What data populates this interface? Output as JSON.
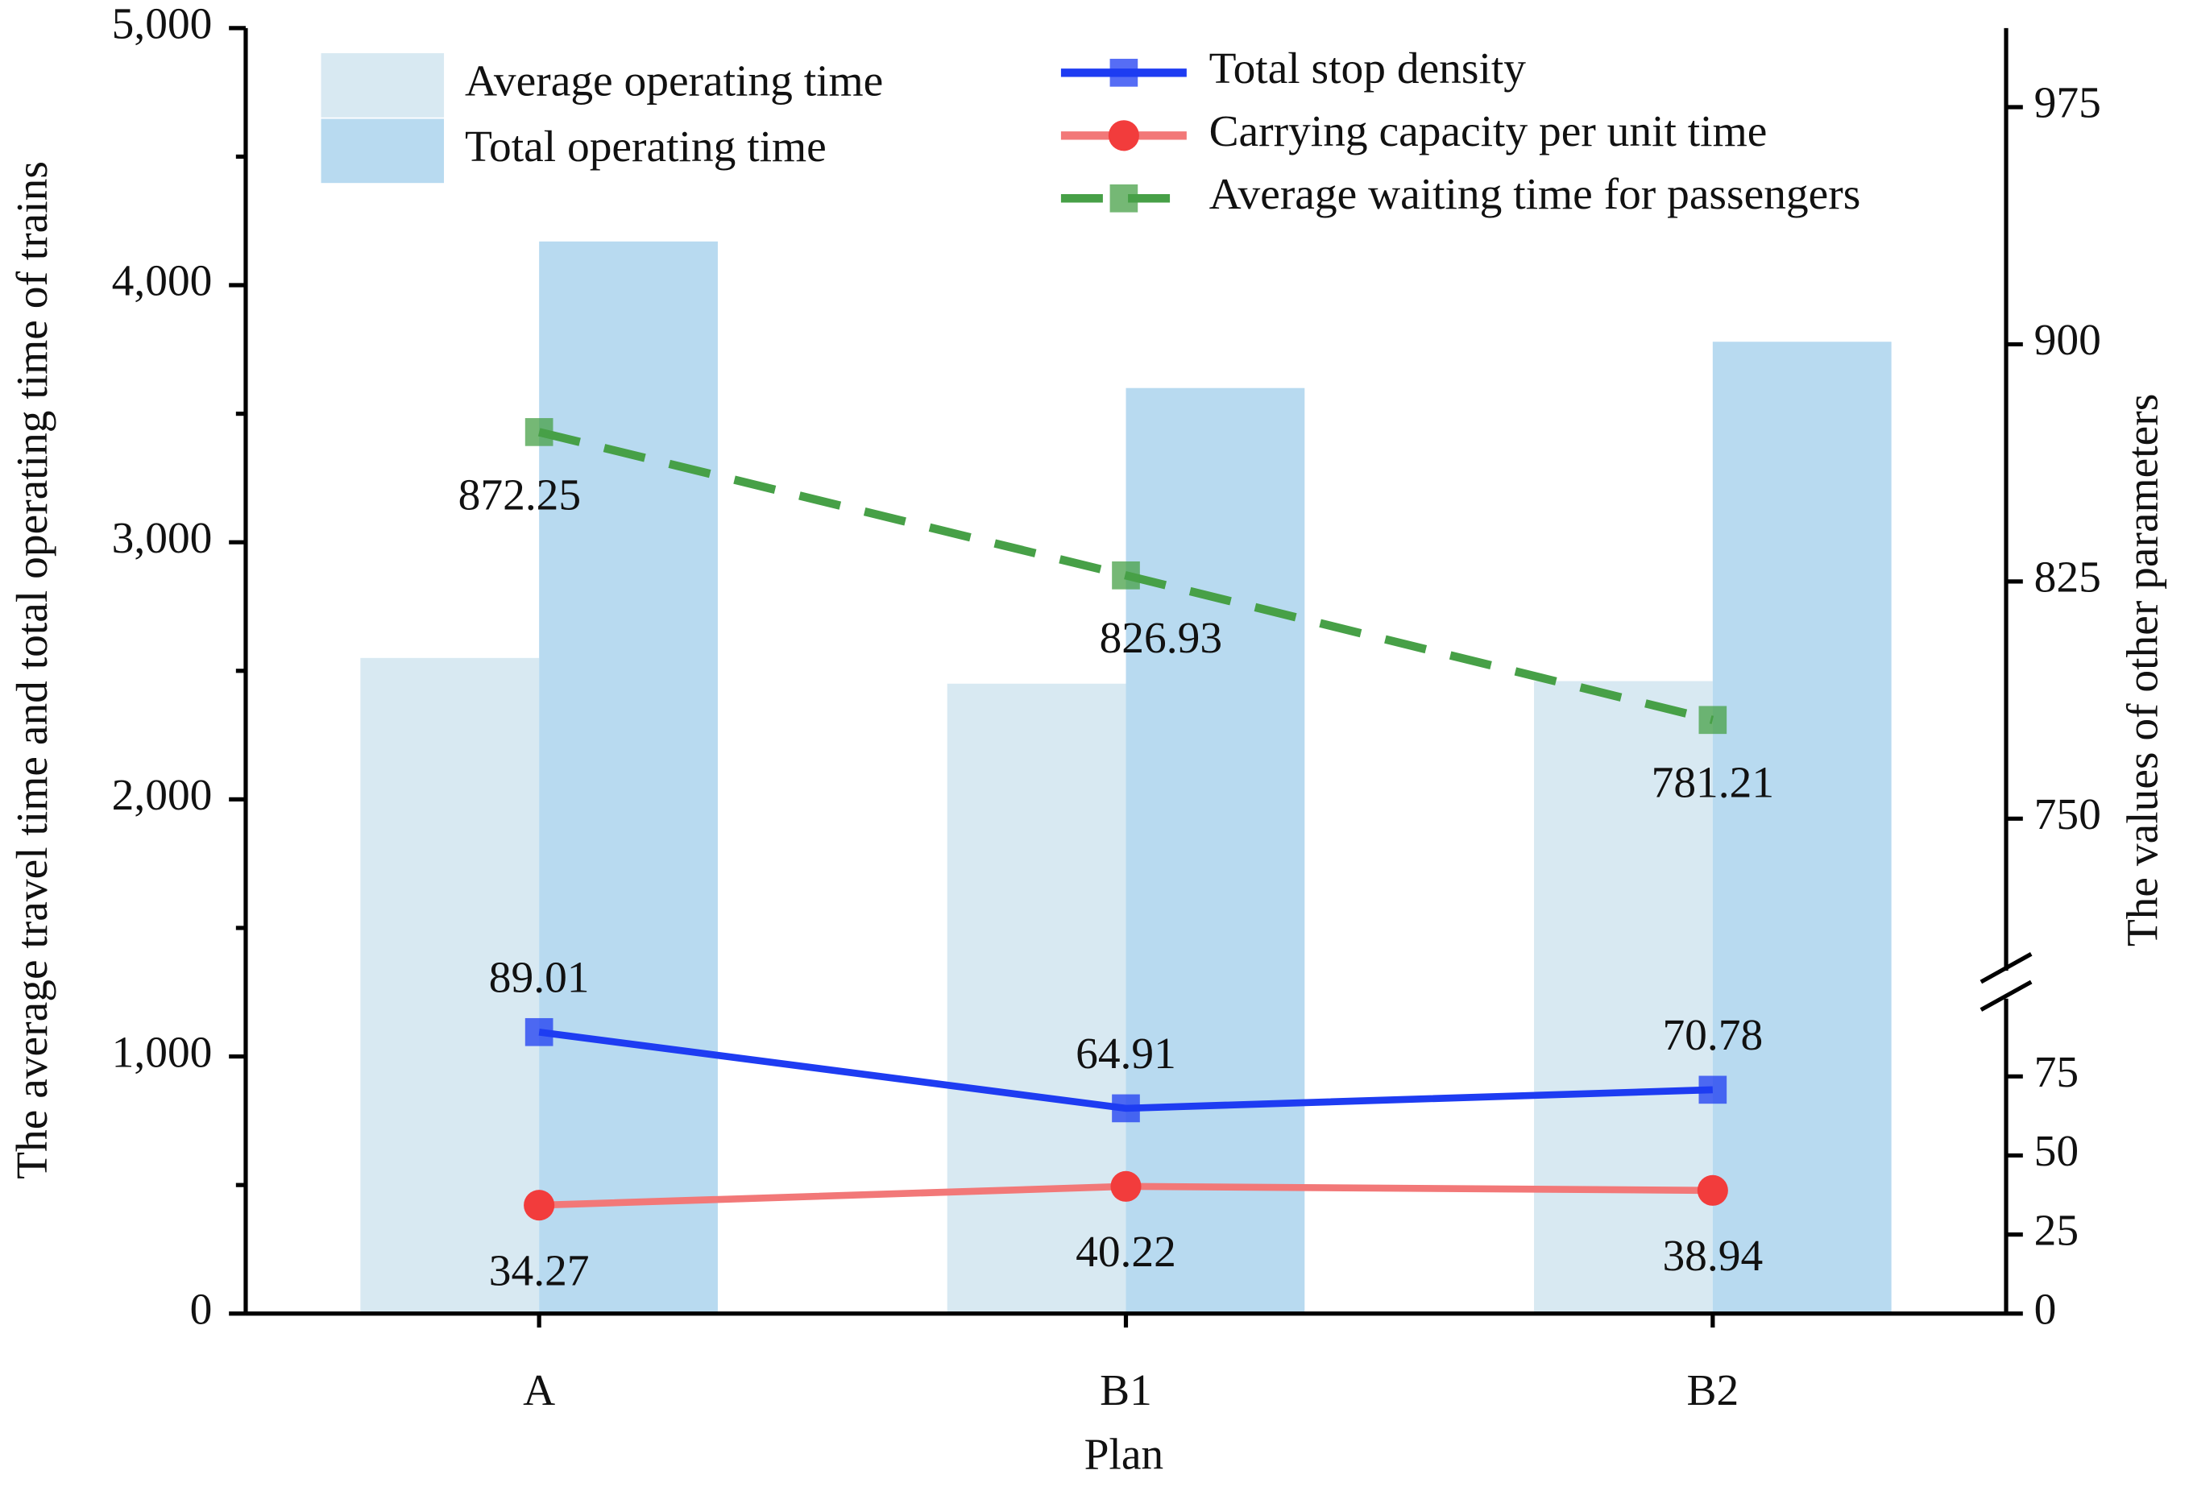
{
  "chart_data": {
    "type": "bar",
    "x_label": "Plan",
    "y_label": "The average travel time and total operating time of trains",
    "y2_label": "The values of other parameters",
    "categories": [
      "A",
      "B1",
      "B2"
    ],
    "ylim": [
      0,
      5000
    ],
    "yticks": [
      0,
      {
        "value": 1000,
        "label": "1,000"
      },
      {
        "value": 2000,
        "label": "2,000"
      },
      {
        "value": 3000,
        "label": "3,000"
      },
      {
        "value": 4000,
        "label": "4,000"
      },
      {
        "value": 5000,
        "label": "5,000"
      }
    ],
    "y2lim": [
      0,
      1000
    ],
    "y2break": [
      104,
      697.5
    ],
    "y2ticks": [
      0,
      25,
      50,
      75,
      750,
      825,
      900,
      975
    ],
    "series": [
      {
        "name": "Average operating time",
        "type": "bar",
        "color": "#d8e9f2",
        "values": [
          2550,
          2450,
          2460
        ]
      },
      {
        "name": "Total operating time",
        "type": "bar",
        "color": "#b8daf0",
        "values": [
          4170,
          3600,
          3780
        ]
      },
      {
        "name": "Total stop density",
        "type": "line",
        "axis": "y2",
        "color": "#1e3cf2",
        "marker": "square",
        "dashed": false,
        "label_side": "above",
        "values": [
          89.01,
          64.91,
          70.78
        ]
      },
      {
        "name": "Carrying capacity per unit time",
        "type": "line",
        "axis": "y2",
        "color": "#f27878",
        "marker": "circle",
        "dashed": false,
        "label_side": "below",
        "values": [
          34.27,
          40.22,
          38.94
        ]
      },
      {
        "name": "Average waiting time for passengers",
        "type": "line",
        "axis": "y2",
        "color": "#47a047",
        "marker": "square",
        "dashed": true,
        "label_side": "below",
        "values": [
          872.25,
          826.93,
          781.21
        ]
      }
    ]
  }
}
